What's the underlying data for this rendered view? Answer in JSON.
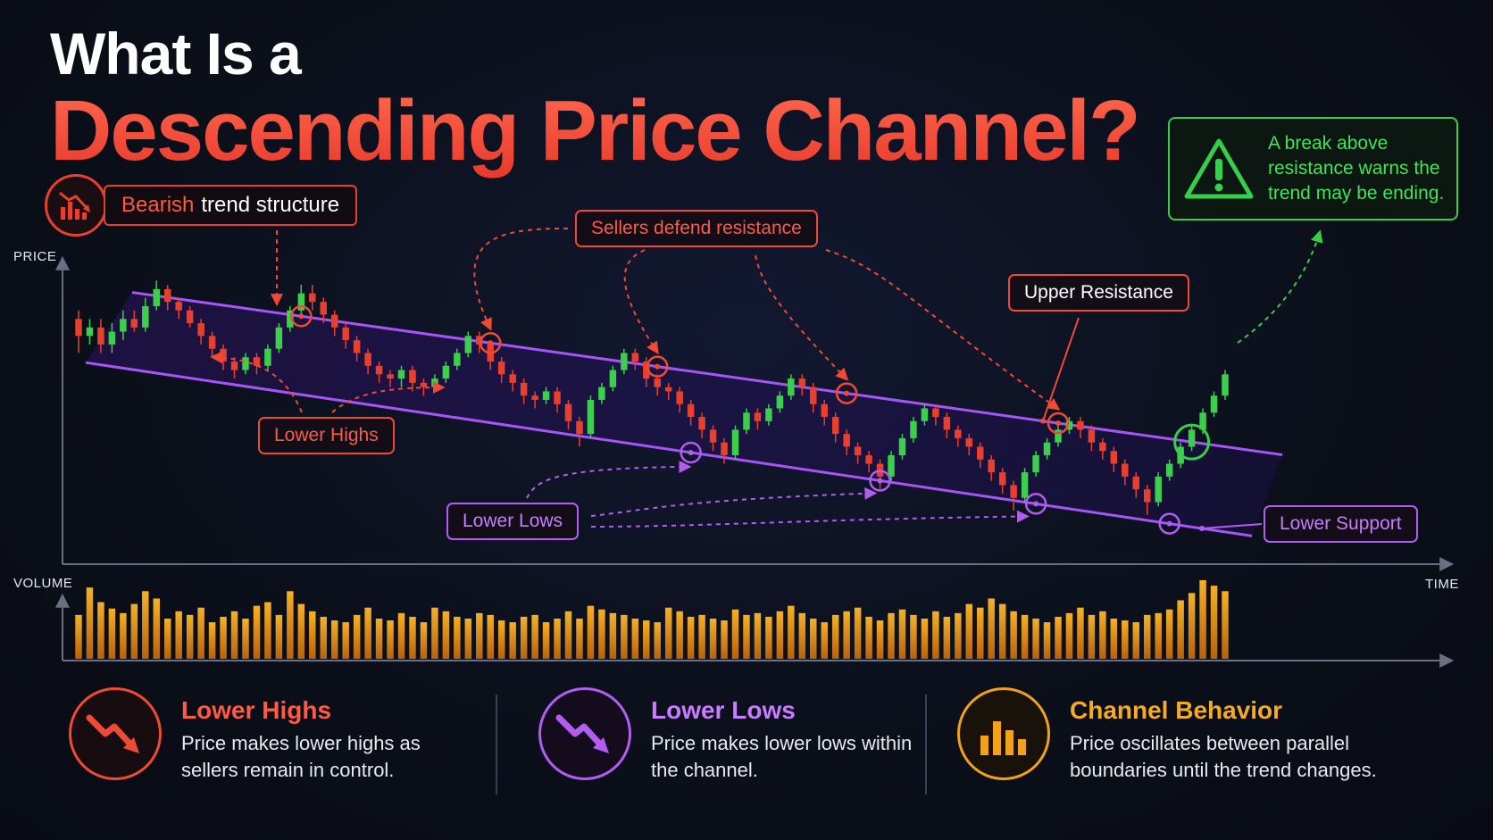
{
  "title": {
    "line1": "What Is a",
    "line2": "Descending Price Channel?"
  },
  "badge": {
    "accent": "Bearish",
    "text": "trend structure",
    "icon": "bearish-chart-icon"
  },
  "warning": {
    "icon": "warning-triangle-icon",
    "text": "A break above resistance warns the trend may be ending."
  },
  "annotations": {
    "sellers": "Sellers defend resistance",
    "upper_resistance": "Upper Resistance",
    "lower_highs": "Lower Highs",
    "lower_lows": "Lower Lows",
    "lower_support": "Lower Support"
  },
  "axes": {
    "price": "PRICE",
    "volume": "VOLUME",
    "time": "TIME"
  },
  "colors": {
    "bullish": "#3ccf4e",
    "bearish": "#e8402f",
    "channel": "#a855f7",
    "volume": "#f0a21a",
    "breakout": "#35d04a"
  },
  "chart_data": {
    "type": "candlestick",
    "candles": [
      [
        92,
        88,
        94,
        84
      ],
      [
        88,
        90,
        92,
        86
      ],
      [
        90,
        86,
        92,
        84
      ],
      [
        86,
        89,
        91,
        84
      ],
      [
        89,
        92,
        94,
        87
      ],
      [
        92,
        90,
        94,
        89
      ],
      [
        90,
        95,
        97,
        89
      ],
      [
        95,
        99,
        101,
        94
      ],
      [
        99,
        96,
        100,
        94
      ],
      [
        96,
        94,
        97,
        92
      ],
      [
        94,
        91,
        95,
        90
      ],
      [
        91,
        88,
        92,
        86
      ],
      [
        88,
        85,
        89,
        83
      ],
      [
        85,
        82,
        86,
        80
      ],
      [
        82,
        80,
        83,
        78
      ],
      [
        80,
        83,
        84,
        79
      ],
      [
        83,
        81,
        84,
        79
      ],
      [
        81,
        85,
        86,
        80
      ],
      [
        85,
        90,
        91,
        84
      ],
      [
        90,
        94,
        95,
        89
      ],
      [
        94,
        98,
        100,
        93
      ],
      [
        98,
        96,
        100,
        94
      ],
      [
        96,
        93,
        97,
        91
      ],
      [
        93,
        90,
        94,
        88
      ],
      [
        90,
        87,
        91,
        85
      ],
      [
        87,
        84,
        88,
        82
      ],
      [
        84,
        81,
        85,
        79
      ],
      [
        81,
        79,
        82,
        77
      ],
      [
        79,
        78,
        80,
        76
      ],
      [
        78,
        80,
        81,
        76
      ],
      [
        80,
        77,
        81,
        75
      ],
      [
        77,
        76,
        78,
        74
      ],
      [
        76,
        78,
        79,
        75
      ],
      [
        78,
        81,
        82,
        77
      ],
      [
        81,
        84,
        85,
        80
      ],
      [
        84,
        88,
        89,
        83
      ],
      [
        88,
        86,
        89,
        84
      ],
      [
        86,
        82,
        87,
        80
      ],
      [
        82,
        79,
        83,
        77
      ],
      [
        79,
        77,
        80,
        75
      ],
      [
        77,
        74,
        78,
        72
      ],
      [
        74,
        73,
        75,
        71
      ],
      [
        73,
        75,
        76,
        72
      ],
      [
        75,
        72,
        76,
        70
      ],
      [
        72,
        68,
        73,
        66
      ],
      [
        68,
        65,
        69,
        62
      ],
      [
        65,
        73,
        74,
        64
      ],
      [
        73,
        76,
        77,
        72
      ],
      [
        76,
        80,
        81,
        75
      ],
      [
        80,
        84,
        85,
        79
      ],
      [
        84,
        82,
        85,
        80
      ],
      [
        82,
        78,
        83,
        76
      ],
      [
        78,
        76,
        79,
        74
      ],
      [
        76,
        75,
        77,
        73
      ],
      [
        75,
        72,
        76,
        70
      ],
      [
        72,
        69,
        73,
        67
      ],
      [
        69,
        66,
        70,
        64
      ],
      [
        66,
        63,
        67,
        61
      ],
      [
        63,
        60,
        64,
        58
      ],
      [
        60,
        66,
        67,
        59
      ],
      [
        66,
        70,
        71,
        65
      ],
      [
        70,
        68,
        71,
        66
      ],
      [
        68,
        71,
        72,
        67
      ],
      [
        71,
        74,
        75,
        70
      ],
      [
        74,
        78,
        79,
        73
      ],
      [
        78,
        76,
        79,
        74
      ],
      [
        76,
        72,
        77,
        70
      ],
      [
        72,
        69,
        73,
        67
      ],
      [
        69,
        65,
        70,
        63
      ],
      [
        65,
        62,
        66,
        60
      ],
      [
        62,
        60,
        63,
        58
      ],
      [
        60,
        58,
        61,
        56
      ],
      [
        58,
        55,
        59,
        52
      ],
      [
        55,
        60,
        61,
        54
      ],
      [
        60,
        64,
        65,
        59
      ],
      [
        64,
        68,
        69,
        63
      ],
      [
        68,
        71,
        72,
        67
      ],
      [
        71,
        69,
        72,
        67
      ],
      [
        69,
        66,
        70,
        64
      ],
      [
        66,
        64,
        67,
        62
      ],
      [
        64,
        62,
        65,
        60
      ],
      [
        62,
        59,
        63,
        57
      ],
      [
        59,
        56,
        60,
        54
      ],
      [
        56,
        53,
        57,
        51
      ],
      [
        53,
        50,
        54,
        47
      ],
      [
        50,
        56,
        57,
        49
      ],
      [
        56,
        60,
        61,
        55
      ],
      [
        60,
        63,
        64,
        59
      ],
      [
        63,
        66,
        67,
        62
      ],
      [
        66,
        68,
        69,
        65
      ],
      [
        68,
        66,
        69,
        64
      ],
      [
        66,
        63,
        67,
        61
      ],
      [
        63,
        61,
        64,
        59
      ],
      [
        61,
        58,
        62,
        56
      ],
      [
        58,
        55,
        59,
        53
      ],
      [
        55,
        52,
        56,
        50
      ],
      [
        52,
        49,
        53,
        46
      ],
      [
        49,
        55,
        56,
        48
      ],
      [
        55,
        58,
        59,
        54
      ],
      [
        58,
        62,
        63,
        57
      ],
      [
        62,
        66,
        67,
        61
      ],
      [
        66,
        70,
        71,
        65
      ],
      [
        70,
        74,
        75,
        69
      ],
      [
        74,
        79,
        80,
        73
      ]
    ],
    "volume": [
      48,
      78,
      62,
      55,
      50,
      60,
      74,
      66,
      44,
      52,
      48,
      56,
      40,
      46,
      52,
      44,
      58,
      62,
      48,
      74,
      60,
      52,
      46,
      42,
      40,
      48,
      56,
      44,
      42,
      50,
      46,
      40,
      56,
      52,
      46,
      44,
      50,
      48,
      42,
      40,
      46,
      48,
      40,
      44,
      52,
      44,
      58,
      54,
      50,
      48,
      44,
      42,
      40,
      56,
      52,
      46,
      48,
      44,
      42,
      54,
      48,
      50,
      46,
      52,
      58,
      50,
      44,
      40,
      48,
      52,
      56,
      46,
      42,
      50,
      54,
      48,
      44,
      52,
      46,
      50,
      60,
      56,
      66,
      60,
      52,
      48,
      44,
      40,
      46,
      50,
      56,
      48,
      52,
      44,
      42,
      40,
      48,
      50,
      54,
      64,
      72,
      86,
      80,
      74
    ],
    "upper_resistance": {
      "start": 100,
      "end": 62
    },
    "lower_support": {
      "start": 82,
      "end": 42
    },
    "ylim": [
      38,
      104
    ],
    "breakout_index": 100
  },
  "info": [
    {
      "title": "Lower Highs",
      "desc": "Price makes lower highs as sellers remain in control.",
      "icon": "down-trend-arrow-icon",
      "color": "#ef4a35"
    },
    {
      "title": "Lower Lows",
      "desc": "Price makes lower lows within the channel.",
      "icon": "down-trend-arrow-icon",
      "color": "#b15ef0"
    },
    {
      "title": "Channel Behavior",
      "desc": "Price oscillates between parallel boundaries until the trend changes.",
      "icon": "bar-chart-icon",
      "color": "#f0a21a"
    }
  ]
}
